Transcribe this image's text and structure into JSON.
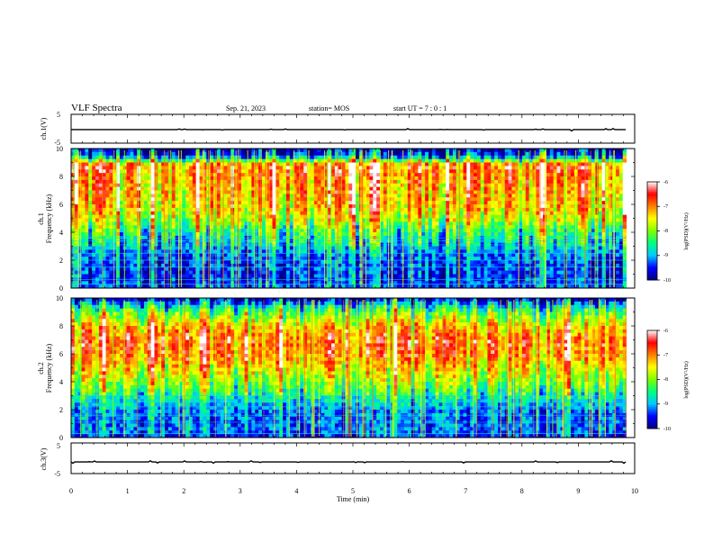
{
  "header": {
    "title": "VLF Spectra",
    "date": "Sep. 21, 2023",
    "station": "station= MOS",
    "start": "start UT = 7 : 0 : 1"
  },
  "colors": {
    "colormap": [
      "#000080",
      "#0000ff",
      "#00c8ff",
      "#00ff80",
      "#80ff00",
      "#ffff00",
      "#ff8000",
      "#ff0000",
      "#ffffff"
    ],
    "trace": "#000000",
    "axis": "#000000"
  },
  "chart_data": [
    {
      "type": "line",
      "panel": "ch1-waveform",
      "ylabel": "ch.1(V)",
      "ylim": [
        -5,
        5
      ],
      "yticks": [
        "5",
        "-5"
      ],
      "x_range": [
        0,
        10
      ],
      "series": [
        {
          "values_approx_constant": -0.3
        }
      ]
    },
    {
      "type": "heatmap",
      "panel": "ch1-spectrogram",
      "ylabel_line1": "ch.1",
      "ylabel_line2": "Frequency (kHz)",
      "ylim": [
        0,
        10
      ],
      "yticks": [
        "0",
        "2",
        "4",
        "6",
        "8",
        "10"
      ],
      "x_range": [
        0,
        10
      ],
      "data_end_min": 9.85,
      "colorbar": {
        "label": "log(PSD)(V²/Hz)",
        "range": [
          -10,
          -6
        ],
        "ticks": [
          "-6",
          "-7",
          "-8",
          "-9",
          "-10"
        ]
      },
      "profile_log_psd": {
        "freq_khz": [
          0,
          1,
          2,
          3,
          4,
          5,
          6,
          7,
          8,
          8.8,
          9.5,
          10
        ],
        "value": [
          -9.4,
          -9.5,
          -9.4,
          -9.0,
          -8.6,
          -7.8,
          -7.4,
          -7.3,
          -7.1,
          -6.9,
          -9.6,
          -10
        ]
      },
      "horizontal_lines_khz": [
        0.3,
        0.6,
        1.5,
        2.0,
        2.5,
        3.1,
        3.4,
        3.6
      ]
    },
    {
      "type": "heatmap",
      "panel": "ch2-spectrogram",
      "ylabel_line1": "ch.2",
      "ylabel_line2": "Frequency (kHz)",
      "ylim": [
        0,
        10
      ],
      "yticks": [
        "0",
        "2",
        "4",
        "6",
        "8",
        "10"
      ],
      "x_range": [
        0,
        10
      ],
      "data_end_min": 9.85,
      "colorbar": {
        "label": "log(PSD)(V²/Hz)",
        "range": [
          -10,
          -6
        ],
        "ticks": [
          "-6",
          "-7",
          "-8",
          "-9",
          "-10"
        ]
      },
      "profile_log_psd": {
        "freq_khz": [
          0,
          0.5,
          1,
          2,
          3,
          4,
          5,
          6,
          7,
          8,
          9,
          9.6,
          10
        ],
        "value": [
          -9.6,
          -9.2,
          -9.3,
          -9.2,
          -8.6,
          -8.0,
          -7.5,
          -7.0,
          -6.9,
          -7.4,
          -8.3,
          -9.2,
          -10
        ]
      },
      "horizontal_lines_khz": [
        0.3,
        1.1,
        1.6,
        2.2,
        2.6,
        3.0
      ]
    },
    {
      "type": "line",
      "panel": "ch3-waveform",
      "ylabel": "ch.3(V)",
      "ylim": [
        -5,
        5
      ],
      "yticks": [
        "5",
        "-5"
      ],
      "x_range": [
        0,
        10
      ],
      "series": [
        {
          "values_approx_constant": -1.2
        }
      ]
    }
  ],
  "xaxis": {
    "label": "Time (min)",
    "ticks": [
      "0",
      "1",
      "2",
      "3",
      "4",
      "5",
      "6",
      "7",
      "8",
      "9",
      "10"
    ],
    "range": [
      0,
      10
    ]
  }
}
